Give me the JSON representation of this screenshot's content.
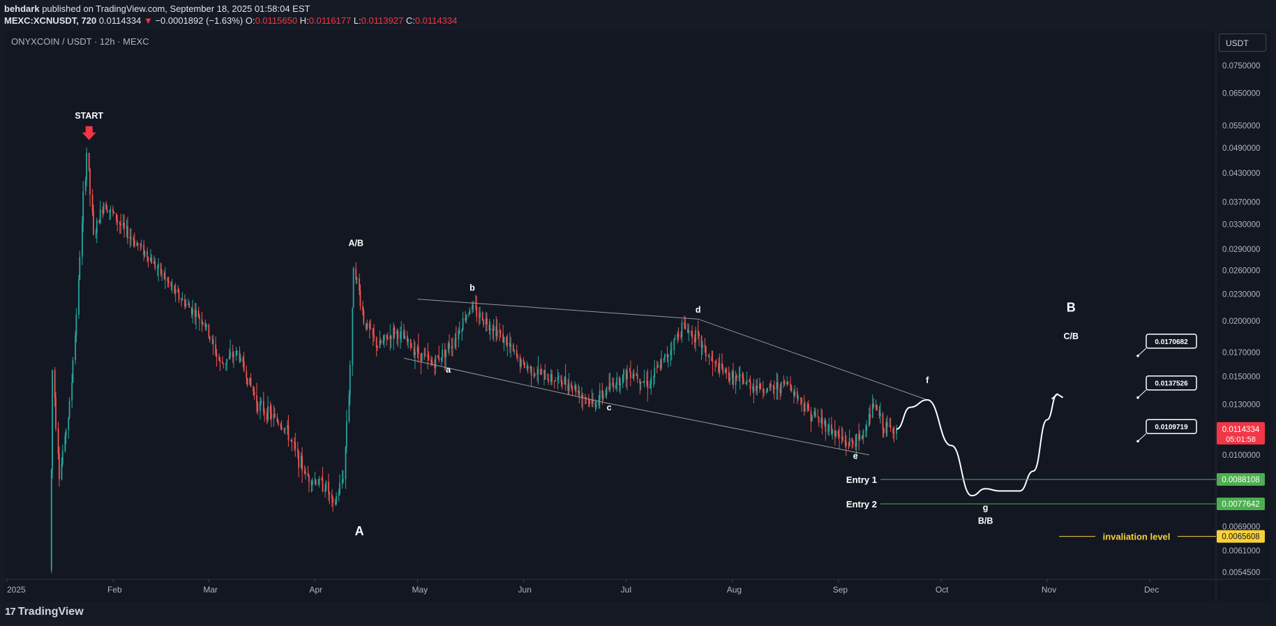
{
  "header": {
    "author": "behdark",
    "published_text": "published on TradingView.com, September 18, 2025 01:58:04 EST",
    "symbol": "MEXC:XCNUSDT, 720",
    "price": "0.0114334",
    "change": "−0.0001892 (−1.63%)",
    "open_label": "O:",
    "open": "0.0115650",
    "high_label": "H:",
    "high": "0.0116177",
    "low_label": "L:",
    "low": "0.0113927",
    "close_label": "C:",
    "close": "0.0114334"
  },
  "chart_title": "ONYXCOIN / USDT · 12h · MEXC",
  "currency_button": "USDT",
  "footer": {
    "logo_text": "TradingView",
    "logo_mark": "17"
  },
  "colors": {
    "background": "#131722",
    "up": "#26a69a",
    "down": "#ef5350",
    "entry": "#4caf50",
    "invalidation": "#f7d13a",
    "current": "#f23645",
    "annotation": "#ffffff"
  },
  "chart_data": {
    "type": "candlestick",
    "title": "ONYXCOIN / USDT · 12h · MEXC",
    "x_ticks": [
      "2025",
      "Feb",
      "Mar",
      "Apr",
      "May",
      "Jun",
      "Jul",
      "Aug",
      "Sep",
      "Oct",
      "Nov",
      "Dec"
    ],
    "y_ticks": [
      "0.0750000",
      "0.0650000",
      "0.0550000",
      "0.0490000",
      "0.0430000",
      "0.0370000",
      "0.0330000",
      "0.0290000",
      "0.0260000",
      "0.0230000",
      "0.0200000",
      "0.0170000",
      "0.0150000",
      "0.0130000",
      "0.0100000",
      "0.0069000",
      "0.0061000",
      "0.0054500"
    ],
    "y_scale": "log",
    "price_path": [
      [
        "2025-01-14",
        0.0055
      ],
      [
        "2025-01-15",
        0.0155
      ],
      [
        "2025-01-17",
        0.009
      ],
      [
        "2025-01-20",
        0.013
      ],
      [
        "2025-01-22",
        0.021
      ],
      [
        "2025-01-24",
        0.038
      ],
      [
        "2025-01-25",
        0.048
      ],
      [
        "2025-01-27",
        0.031
      ],
      [
        "2025-01-30",
        0.037
      ],
      [
        "2025-02-05",
        0.032
      ],
      [
        "2025-02-12",
        0.028
      ],
      [
        "2025-02-20",
        0.023
      ],
      [
        "2025-02-28",
        0.02
      ],
      [
        "2025-03-05",
        0.016
      ],
      [
        "2025-03-10",
        0.017
      ],
      [
        "2025-03-16",
        0.013
      ],
      [
        "2025-03-24",
        0.0115
      ],
      [
        "2025-03-30",
        0.009
      ],
      [
        "2025-04-05",
        0.0085
      ],
      [
        "2025-04-07",
        0.0076
      ],
      [
        "2025-04-10",
        0.009
      ],
      [
        "2025-04-12",
        0.016
      ],
      [
        "2025-04-13",
        0.027
      ],
      [
        "2025-04-16",
        0.02
      ],
      [
        "2025-04-20",
        0.0175
      ],
      [
        "2025-04-25",
        0.019
      ],
      [
        "2025-04-30",
        0.0175
      ],
      [
        "2025-05-06",
        0.016
      ],
      [
        "2025-05-12",
        0.018
      ],
      [
        "2025-05-17",
        0.0215
      ],
      [
        "2025-05-25",
        0.019
      ],
      [
        "2025-06-01",
        0.016
      ],
      [
        "2025-06-08",
        0.015
      ],
      [
        "2025-06-15",
        0.0145
      ],
      [
        "2025-06-22",
        0.013
      ],
      [
        "2025-06-28",
        0.0145
      ],
      [
        "2025-07-03",
        0.0155
      ],
      [
        "2025-07-08",
        0.0145
      ],
      [
        "2025-07-13",
        0.0165
      ],
      [
        "2025-07-18",
        0.0195
      ],
      [
        "2025-07-22",
        0.0185
      ],
      [
        "2025-07-27",
        0.016
      ],
      [
        "2025-08-01",
        0.015
      ],
      [
        "2025-08-06",
        0.0145
      ],
      [
        "2025-08-12",
        0.014
      ],
      [
        "2025-08-18",
        0.0145
      ],
      [
        "2025-08-24",
        0.0125
      ],
      [
        "2025-08-30",
        0.0115
      ],
      [
        "2025-09-04",
        0.0106
      ],
      [
        "2025-09-08",
        0.0108
      ],
      [
        "2025-09-12",
        0.013
      ],
      [
        "2025-09-15",
        0.0115
      ],
      [
        "2025-09-18",
        0.0114334
      ]
    ],
    "projection": [
      [
        "2025-09-18",
        0.01143
      ],
      [
        "2025-09-22",
        0.0128
      ],
      [
        "2025-09-27",
        0.0133
      ],
      [
        "2025-10-04",
        0.0105
      ],
      [
        "2025-10-10",
        0.0081
      ],
      [
        "2025-10-14",
        0.0084
      ],
      [
        "2025-10-18",
        0.0083
      ],
      [
        "2025-10-24",
        0.0083
      ],
      [
        "2025-10-28",
        0.0092
      ],
      [
        "2025-11-01",
        0.012
      ],
      [
        "2025-11-04",
        0.0137
      ]
    ],
    "triangle_lines": [
      [
        [
          "2025-05-01",
          0.0224
        ],
        [
          "2025-07-22",
          0.0202
        ],
        [
          "2025-09-27",
          0.0133
        ]
      ],
      [
        [
          "2025-04-27",
          0.0165
        ],
        [
          "2025-06-25",
          0.0131
        ],
        [
          "2025-09-10",
          0.01
        ]
      ]
    ],
    "wave_labels": [
      {
        "text": "START",
        "date": "2025-01-25",
        "price": 0.057
      },
      {
        "text": "A/B",
        "date": "2025-04-13",
        "price": 0.0295
      },
      {
        "text": "A",
        "date": "2025-04-14",
        "price": 0.0066
      },
      {
        "text": "a",
        "date": "2025-05-10",
        "price": 0.0153
      },
      {
        "text": "b",
        "date": "2025-05-17",
        "price": 0.0234
      },
      {
        "text": "c",
        "date": "2025-06-26",
        "price": 0.0126
      },
      {
        "text": "d",
        "date": "2025-07-22",
        "price": 0.0209
      },
      {
        "text": "e",
        "date": "2025-09-06",
        "price": 0.0098
      },
      {
        "text": "f",
        "date": "2025-09-27",
        "price": 0.0145
      },
      {
        "text": "g",
        "date": "2025-10-14",
        "price": 0.0075
      },
      {
        "text": "B/B",
        "date": "2025-10-14",
        "price": 0.007
      },
      {
        "text": "B",
        "date": "2025-11-08",
        "price": 0.021
      },
      {
        "text": "C/B",
        "date": "2025-11-08",
        "price": 0.0182
      }
    ],
    "targets": [
      "0.0170682",
      "0.0137526",
      "0.0109719"
    ],
    "horizontal_levels": [
      {
        "label": "Entry 1",
        "value": "0.0088108",
        "color": "#4caf50"
      },
      {
        "label": "Entry 2",
        "value": "0.0077642",
        "color": "#4caf50"
      },
      {
        "label": "invaliation level",
        "value": "0.0065608",
        "color": "#f7d13a"
      }
    ],
    "current_price": {
      "value": "0.0114334",
      "countdown": "05:01:58"
    }
  }
}
